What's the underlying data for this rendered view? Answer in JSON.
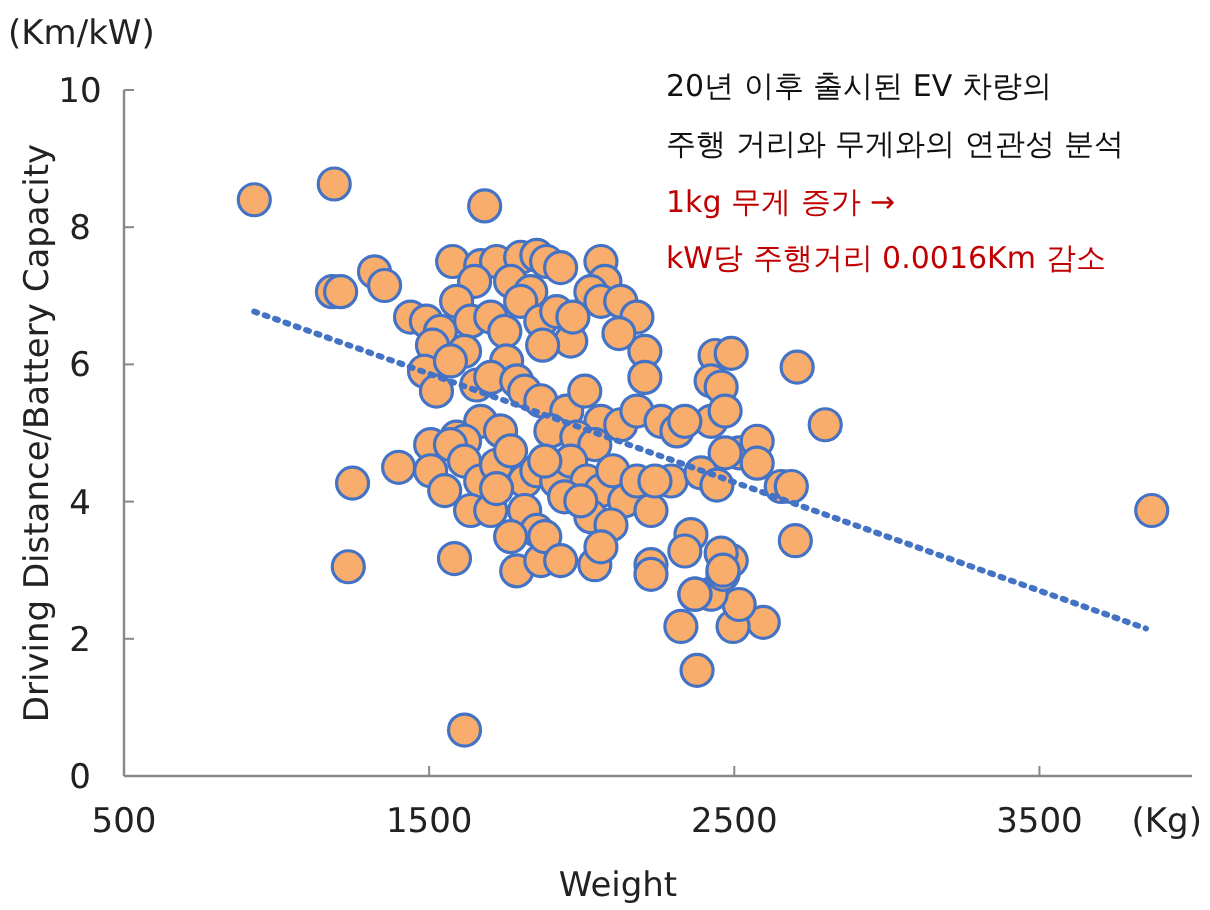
{
  "chart_data": {
    "type": "scatter",
    "title": "20년 이후 출시된 EV 차량의",
    "subtitle": "주행 거리와 무게와의 연관성 분석",
    "xlabel": "Weight",
    "ylabel": "Driving Distance/Battery Capacity",
    "annotations": [
      "1kg 무게 증가 →",
      "kW당  주행거리 0.0016Km 감소",
      "(Km/kW)",
      "(Kg)"
    ],
    "xlim": [
      500,
      4000
    ],
    "xticks": [
      500,
      1500,
      2500,
      3500
    ],
    "ylim": [
      0,
      10
    ],
    "yticks": [
      0,
      2,
      4,
      6,
      8,
      10
    ],
    "grid": false,
    "series": [
      {
        "color": "#f8ad6d",
        "marker": "circle",
        "x": [
          927,
          1189,
          1183,
          1210,
          1321,
          1354,
          1682,
          1249,
          1400,
          1235,
          1583,
          1616,
          3868,
          2706,
          2798,
          2654,
          2687,
          2700,
          2595,
          2378,
          2325,
          2496,
          2516,
          2424,
          2463,
          2371,
          2358,
          2227,
          1577,
          1669,
          1721,
          1800,
          1853,
          1885,
          1931,
          2063,
          2076,
          1767,
          1833,
          1649,
          1439,
          1491,
          1537,
          1590,
          1636,
          1702,
          1748,
          1800,
          1866,
          1918,
          1964,
          2030,
          2063,
          2128,
          2181,
          2207,
          1616,
          1511,
          1971,
          2122,
          1754,
          1872,
          2437,
          2490,
          2424,
          2457,
          2424,
          2470,
          2516,
          2575,
          2470,
          2575,
          1485,
          1524,
          1570,
          1656,
          1702,
          1787,
          1813,
          1866,
          1951,
          2010,
          2063,
          2128,
          2181,
          2207,
          2260,
          2312,
          2338,
          1669,
          1734,
          1590,
          1616,
          1899,
          1984,
          2043,
          1505,
          1570,
          1616,
          1669,
          1721,
          1767,
          1813,
          1853,
          1918,
          1964,
          2017,
          2063,
          2102,
          2141,
          2181,
          2227,
          2293,
          1505,
          1551,
          1636,
          1702,
          1813,
          1944,
          2030,
          2096,
          1853,
          1767,
          1721,
          1879,
          1997,
          2240,
          2391,
          2443,
          2490,
          2338,
          1787,
          1866,
          1879,
          1931,
          2043,
          2063,
          2227,
          2371,
          2457,
          2463
        ],
        "values": [
          8.4,
          8.63,
          7.06,
          7.06,
          7.35,
          7.15,
          8.31,
          4.27,
          4.5,
          3.05,
          3.17,
          0.67,
          3.87,
          5.96,
          5.12,
          4.22,
          4.22,
          3.43,
          2.24,
          1.54,
          2.18,
          2.18,
          2.5,
          2.65,
          2.94,
          2.65,
          3.52,
          3.08,
          7.5,
          7.44,
          7.5,
          7.56,
          7.59,
          7.5,
          7.41,
          7.5,
          7.21,
          7.21,
          7.06,
          7.21,
          6.69,
          6.63,
          6.48,
          6.92,
          6.63,
          6.69,
          6.48,
          6.92,
          6.63,
          6.77,
          6.34,
          7.06,
          6.92,
          6.92,
          6.69,
          6.19,
          6.19,
          6.28,
          6.69,
          6.45,
          6.05,
          6.28,
          6.13,
          6.16,
          5.76,
          5.67,
          5.17,
          5.32,
          4.71,
          4.88,
          4.71,
          4.56,
          5.9,
          5.61,
          6.05,
          5.7,
          5.81,
          5.76,
          5.61,
          5.47,
          5.32,
          5.61,
          5.17,
          5.12,
          5.32,
          5.81,
          5.17,
          5.03,
          5.17,
          5.17,
          5.03,
          4.94,
          4.88,
          5.03,
          4.94,
          4.83,
          4.83,
          4.83,
          4.59,
          4.3,
          4.53,
          4.74,
          4.3,
          4.45,
          4.3,
          4.59,
          4.3,
          4.16,
          4.45,
          4.01,
          4.3,
          3.87,
          4.3,
          4.45,
          4.16,
          3.87,
          3.87,
          3.87,
          4.07,
          3.78,
          3.66,
          3.58,
          3.49,
          4.19,
          4.59,
          4.01,
          4.3,
          4.42,
          4.24,
          3.14,
          3.28,
          2.99,
          3.14,
          3.49,
          3.14,
          3.08,
          3.34,
          2.94,
          2.65,
          3.25,
          3.0
        ]
      },
      {
        "type": "line",
        "color": "#4472c4",
        "line_style": "dotted",
        "x": [
          927,
          3849
        ],
        "values": [
          6.77,
          2.15
        ]
      }
    ]
  }
}
